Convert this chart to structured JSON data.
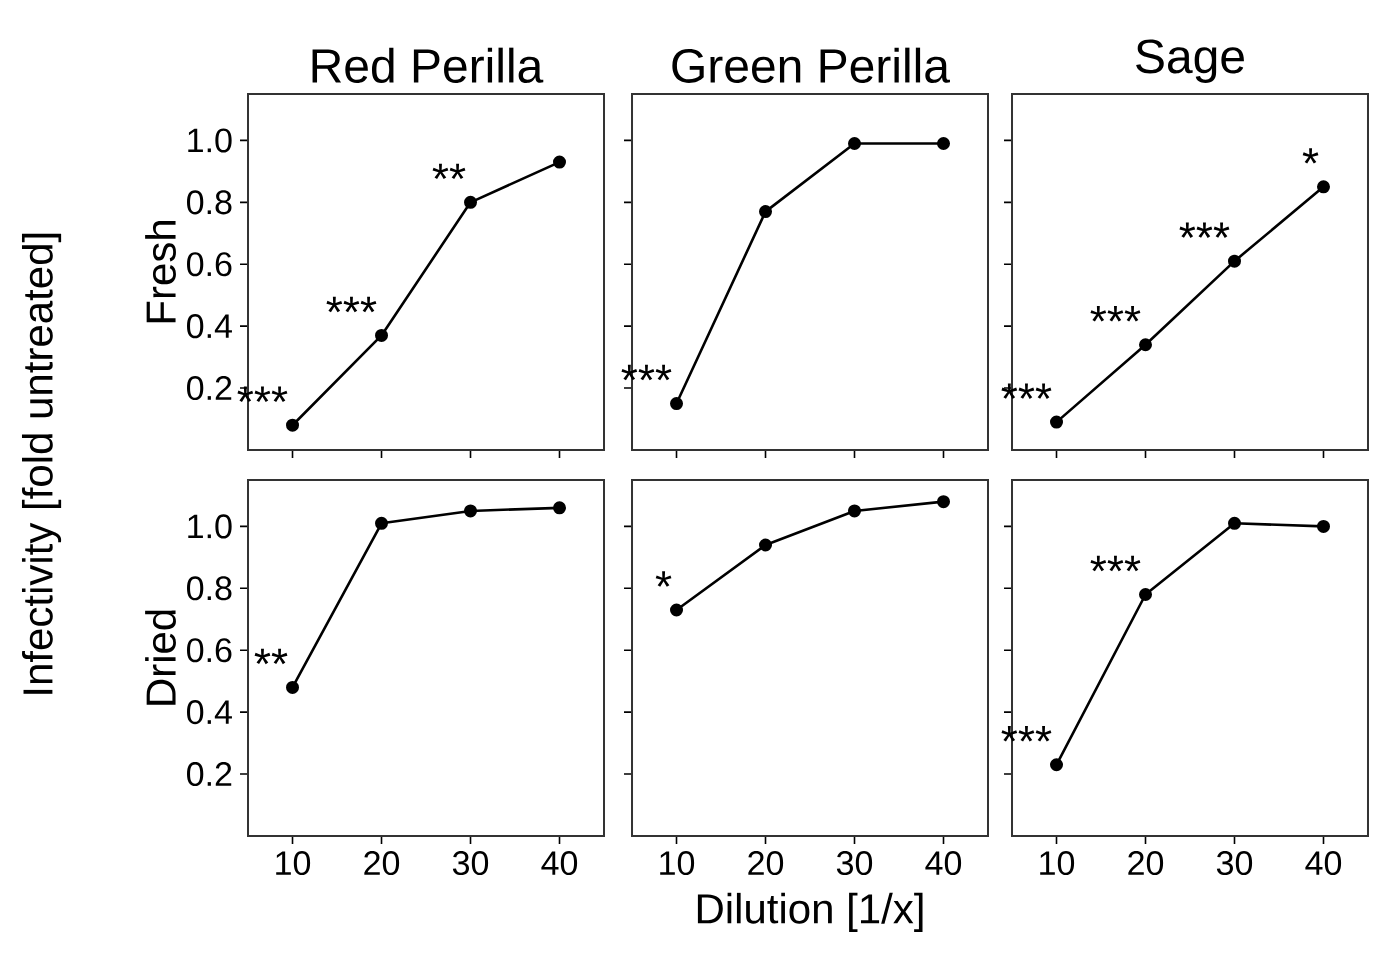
{
  "chart_data": [
    {
      "type": "line",
      "title": "Red Perilla",
      "ylabel": "Fresh",
      "x": [
        10,
        20,
        30,
        40
      ],
      "values": [
        0.08,
        0.37,
        0.8,
        0.93
      ],
      "color": "#000000",
      "marker": "circle",
      "line_style": "solid",
      "xlim": [
        5,
        45
      ],
      "ylim": [
        0,
        1.15
      ],
      "xticks": [
        10,
        20,
        30,
        40
      ],
      "yticks": [
        0.2,
        0.4,
        0.6,
        0.8,
        {
          "value": 1,
          "label": "1.0"
        }
      ],
      "tick_labels": "y",
      "annotations": [
        {
          "text": "***",
          "x": 10,
          "y": 0.08
        },
        {
          "text": "***",
          "x": 20,
          "y": 0.37
        },
        {
          "text": "**",
          "x": 30,
          "y": 0.8
        },
        "Infectivity [fold untreated]"
      ]
    },
    {
      "type": "line",
      "title": "Green Perilla",
      "x": [
        10,
        20,
        30,
        40
      ],
      "values": [
        0.15,
        0.77,
        0.99,
        0.99
      ],
      "color": "#000000",
      "marker": "circle",
      "line_style": "solid",
      "xlim": [
        5,
        45
      ],
      "ylim": [
        0,
        1.15
      ],
      "xticks": [
        10,
        20,
        30,
        40
      ],
      "yticks": [
        0.2,
        0.4,
        0.6,
        0.8,
        1
      ],
      "tick_labels": false,
      "annotations": [
        {
          "text": "***",
          "x": 10,
          "y": 0.15
        }
      ]
    },
    {
      "type": "line",
      "title": "Sage",
      "x": [
        10,
        20,
        30,
        40
      ],
      "values": [
        0.09,
        0.34,
        0.61,
        0.85
      ],
      "color": "#000000",
      "marker": "circle",
      "line_style": "solid",
      "xlim": [
        5,
        45
      ],
      "ylim": [
        0,
        1.15
      ],
      "xticks": [
        10,
        20,
        30,
        40
      ],
      "yticks": [
        0.2,
        0.4,
        0.6,
        0.8,
        1
      ],
      "tick_labels": false,
      "annotations": [
        {
          "text": "***",
          "x": 10,
          "y": 0.09
        },
        {
          "text": "***",
          "x": 20,
          "y": 0.34
        },
        {
          "text": "***",
          "x": 30,
          "y": 0.61
        },
        {
          "text": "*",
          "x": 40,
          "y": 0.85
        }
      ]
    },
    {
      "type": "line",
      "ylabel": "Dried",
      "x": [
        10,
        20,
        30,
        40
      ],
      "values": [
        0.48,
        1.01,
        1.05,
        1.06
      ],
      "color": "#000000",
      "marker": "circle",
      "line_style": "solid",
      "xlim": [
        5,
        45
      ],
      "ylim": [
        0,
        1.15
      ],
      "xticks": [
        10,
        20,
        30,
        40
      ],
      "yticks": [
        0.2,
        0.4,
        0.6,
        0.8,
        {
          "value": 1,
          "label": "1.0"
        }
      ],
      "annotations": [
        {
          "text": "**",
          "x": 10,
          "y": 0.48
        }
      ]
    },
    {
      "type": "line",
      "xlabel": "Dilution [1/x]",
      "x": [
        10,
        20,
        30,
        40
      ],
      "values": [
        0.73,
        0.94,
        1.05,
        1.08
      ],
      "color": "#000000",
      "marker": "circle",
      "line_style": "solid",
      "xlim": [
        5,
        45
      ],
      "ylim": [
        0,
        1.15
      ],
      "xticks": [
        10,
        20,
        30,
        40
      ],
      "yticks": [
        0.2,
        0.4,
        0.6,
        0.8,
        1
      ],
      "tick_labels": "x",
      "annotations": [
        {
          "text": "*",
          "x": 10,
          "y": 0.73
        }
      ]
    },
    {
      "type": "line",
      "x": [
        10,
        20,
        30,
        40
      ],
      "values": [
        0.23,
        0.78,
        1.01,
        1.0
      ],
      "color": "#000000",
      "marker": "circle",
      "line_style": "solid",
      "xlim": [
        5,
        45
      ],
      "ylim": [
        0,
        1.15
      ],
      "xticks": [
        10,
        20,
        30,
        40
      ],
      "yticks": [
        0.2,
        0.4,
        0.6,
        0.8,
        1
      ],
      "tick_labels": "x",
      "annotations": [
        {
          "text": "***",
          "x": 10,
          "y": 0.23
        },
        {
          "text": "***",
          "x": 20,
          "y": 0.78
        }
      ]
    }
  ]
}
